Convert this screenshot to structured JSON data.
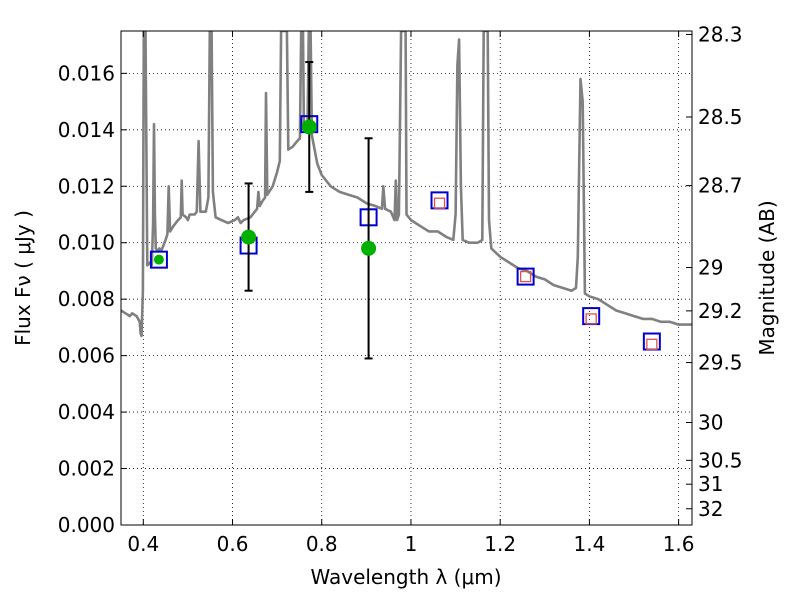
{
  "chart_data": {
    "type": "line",
    "title": "",
    "xlabel": "Wavelength  λ (μm)",
    "ylabel": "Flux  Fν  ( μJy )",
    "ylabel_right": "Magnitude (AB)",
    "xlim": [
      0.35,
      1.63
    ],
    "ylim": [
      0,
      0.0175
    ],
    "grid": true,
    "xticks": [
      {
        "v": 0.4,
        "label": "0.4"
      },
      {
        "v": 0.6,
        "label": "0.6"
      },
      {
        "v": 0.8,
        "label": "0.8"
      },
      {
        "v": 1.0,
        "label": "1"
      },
      {
        "v": 1.2,
        "label": "1.2"
      },
      {
        "v": 1.4,
        "label": "1.4"
      },
      {
        "v": 1.6,
        "label": "1.6"
      }
    ],
    "yticks": [
      {
        "v": 0.0,
        "label": "0.000"
      },
      {
        "v": 0.002,
        "label": "0.002"
      },
      {
        "v": 0.004,
        "label": "0.004"
      },
      {
        "v": 0.006,
        "label": "0.006"
      },
      {
        "v": 0.008,
        "label": "0.008"
      },
      {
        "v": 0.01,
        "label": "0.010"
      },
      {
        "v": 0.012,
        "label": "0.012"
      },
      {
        "v": 0.014,
        "label": "0.014"
      },
      {
        "v": 0.016,
        "label": "0.016"
      }
    ],
    "mag_ticks": [
      {
        "v": 28.3,
        "label": "28.3"
      },
      {
        "v": 28.5,
        "label": "28.5"
      },
      {
        "v": 28.7,
        "label": "28.7"
      },
      {
        "v": 29.0,
        "label": "29"
      },
      {
        "v": 29.2,
        "label": "29.2"
      },
      {
        "v": 29.5,
        "label": "29.5"
      },
      {
        "v": 30.0,
        "label": "30"
      },
      {
        "v": 30.5,
        "label": "30.5"
      },
      {
        "v": 31.0,
        "label": "31"
      },
      {
        "v": 32.0,
        "label": "32"
      }
    ],
    "series": [
      {
        "kind": "spectrum",
        "color": "#808080",
        "points": [
          [
            0.35,
            0.0076
          ],
          [
            0.36,
            0.0075
          ],
          [
            0.37,
            0.0074
          ],
          [
            0.375,
            0.0075
          ],
          [
            0.385,
            0.0074
          ],
          [
            0.392,
            0.0072
          ],
          [
            0.394,
            0.0068
          ],
          [
            0.396,
            0.0067
          ],
          [
            0.399,
            0.0083
          ],
          [
            0.401,
            0.0175
          ],
          [
            0.405,
            0.0175
          ],
          [
            0.409,
            0.0092
          ],
          [
            0.415,
            0.0093
          ],
          [
            0.419,
            0.0092
          ],
          [
            0.422,
            0.0107
          ],
          [
            0.424,
            0.0142
          ],
          [
            0.426,
            0.011
          ],
          [
            0.428,
            0.0098
          ],
          [
            0.432,
            0.0097
          ],
          [
            0.436,
            0.0098
          ],
          [
            0.44,
            0.0097
          ],
          [
            0.445,
            0.0099
          ],
          [
            0.45,
            0.0101
          ],
          [
            0.454,
            0.0103
          ],
          [
            0.457,
            0.012
          ],
          [
            0.46,
            0.0104
          ],
          [
            0.468,
            0.0106
          ],
          [
            0.478,
            0.0108
          ],
          [
            0.484,
            0.0109
          ],
          [
            0.486,
            0.0122
          ],
          [
            0.488,
            0.011
          ],
          [
            0.496,
            0.0109
          ],
          [
            0.5,
            0.0108
          ],
          [
            0.504,
            0.011
          ],
          [
            0.515,
            0.011
          ],
          [
            0.52,
            0.0111
          ],
          [
            0.524,
            0.0136
          ],
          [
            0.528,
            0.0111
          ],
          [
            0.54,
            0.0111
          ],
          [
            0.546,
            0.0116
          ],
          [
            0.549,
            0.0175
          ],
          [
            0.553,
            0.0175
          ],
          [
            0.556,
            0.0118
          ],
          [
            0.562,
            0.0109
          ],
          [
            0.575,
            0.0108
          ],
          [
            0.59,
            0.0107
          ],
          [
            0.605,
            0.0108
          ],
          [
            0.612,
            0.0109
          ],
          [
            0.618,
            0.0107
          ],
          [
            0.625,
            0.0108
          ],
          [
            0.64,
            0.0109
          ],
          [
            0.65,
            0.0111
          ],
          [
            0.655,
            0.0112
          ],
          [
            0.658,
            0.0118
          ],
          [
            0.661,
            0.0113
          ],
          [
            0.668,
            0.0115
          ],
          [
            0.673,
            0.0116
          ],
          [
            0.675,
            0.0153
          ],
          [
            0.678,
            0.0117
          ],
          [
            0.69,
            0.012
          ],
          [
            0.7,
            0.0125
          ],
          [
            0.706,
            0.0129
          ],
          [
            0.709,
            0.0175
          ],
          [
            0.722,
            0.0175
          ],
          [
            0.725,
            0.0133
          ],
          [
            0.735,
            0.0134
          ],
          [
            0.745,
            0.0136
          ],
          [
            0.751,
            0.0137
          ],
          [
            0.754,
            0.0175
          ],
          [
            0.758,
            0.0175
          ],
          [
            0.76,
            0.014
          ],
          [
            0.768,
            0.0141
          ],
          [
            0.771,
            0.0175
          ],
          [
            0.775,
            0.0175
          ],
          [
            0.778,
            0.0138
          ],
          [
            0.79,
            0.0128
          ],
          [
            0.8,
            0.0124
          ],
          [
            0.82,
            0.012
          ],
          [
            0.84,
            0.0118
          ],
          [
            0.86,
            0.0117
          ],
          [
            0.88,
            0.0116
          ],
          [
            0.9,
            0.0114
          ],
          [
            0.92,
            0.0113
          ],
          [
            0.935,
            0.0112
          ],
          [
            0.938,
            0.012
          ],
          [
            0.942,
            0.0112
          ],
          [
            0.955,
            0.0111
          ],
          [
            0.963,
            0.0108
          ],
          [
            0.966,
            0.0122
          ],
          [
            0.969,
            0.0108
          ],
          [
            0.973,
            0.011
          ],
          [
            0.978,
            0.0175
          ],
          [
            0.988,
            0.0175
          ],
          [
            0.99,
            0.011
          ],
          [
            1.0,
            0.0108
          ],
          [
            1.02,
            0.0106
          ],
          [
            1.04,
            0.0104
          ],
          [
            1.06,
            0.0104
          ],
          [
            1.08,
            0.0102
          ],
          [
            1.095,
            0.0101
          ],
          [
            1.1,
            0.011
          ],
          [
            1.104,
            0.0163
          ],
          [
            1.108,
            0.0172
          ],
          [
            1.112,
            0.012
          ],
          [
            1.116,
            0.0101
          ],
          [
            1.13,
            0.01
          ],
          [
            1.15,
            0.01
          ],
          [
            1.16,
            0.0101
          ],
          [
            1.163,
            0.0175
          ],
          [
            1.172,
            0.0175
          ],
          [
            1.175,
            0.0108
          ],
          [
            1.18,
            0.0098
          ],
          [
            1.2,
            0.0095
          ],
          [
            1.22,
            0.0093
          ],
          [
            1.24,
            0.0091
          ],
          [
            1.26,
            0.009
          ],
          [
            1.28,
            0.0088
          ],
          [
            1.3,
            0.0087
          ],
          [
            1.32,
            0.0085
          ],
          [
            1.34,
            0.0084
          ],
          [
            1.36,
            0.0083
          ],
          [
            1.37,
            0.0084
          ],
          [
            1.374,
            0.0095
          ],
          [
            1.38,
            0.0158
          ],
          [
            1.385,
            0.015
          ],
          [
            1.39,
            0.0082
          ],
          [
            1.4,
            0.0081
          ],
          [
            1.42,
            0.008
          ],
          [
            1.44,
            0.0078
          ],
          [
            1.46,
            0.0076
          ],
          [
            1.48,
            0.0075
          ],
          [
            1.5,
            0.0074
          ],
          [
            1.52,
            0.0073
          ],
          [
            1.54,
            0.0073
          ],
          [
            1.56,
            0.0072
          ],
          [
            1.58,
            0.0072
          ],
          [
            1.6,
            0.0071
          ],
          [
            1.63,
            0.0071
          ]
        ]
      },
      {
        "kind": "model_squares_blue",
        "color": "#0000cc",
        "points": [
          [
            0.435,
            0.0094
          ],
          [
            0.636,
            0.0099
          ],
          [
            0.772,
            0.0142
          ],
          [
            0.905,
            0.0109
          ],
          [
            1.064,
            0.0115
          ],
          [
            1.257,
            0.0088
          ],
          [
            1.404,
            0.0074
          ],
          [
            1.54,
            0.0065
          ]
        ]
      },
      {
        "kind": "model_squares_red",
        "color": "#e05050",
        "points": [
          [
            1.064,
            0.0114
          ],
          [
            1.257,
            0.0088
          ],
          [
            1.404,
            0.0073
          ],
          [
            1.54,
            0.0064
          ]
        ]
      },
      {
        "kind": "observed",
        "color": "#00b000",
        "points": [
          {
            "x": 0.435,
            "y": 0.0094,
            "err": 0.0
          },
          {
            "x": 0.636,
            "y": 0.0102,
            "err": 0.0019
          },
          {
            "x": 0.772,
            "y": 0.0141,
            "err": 0.0023
          },
          {
            "x": 0.905,
            "y": 0.0098,
            "err": 0.0039
          }
        ]
      }
    ]
  }
}
